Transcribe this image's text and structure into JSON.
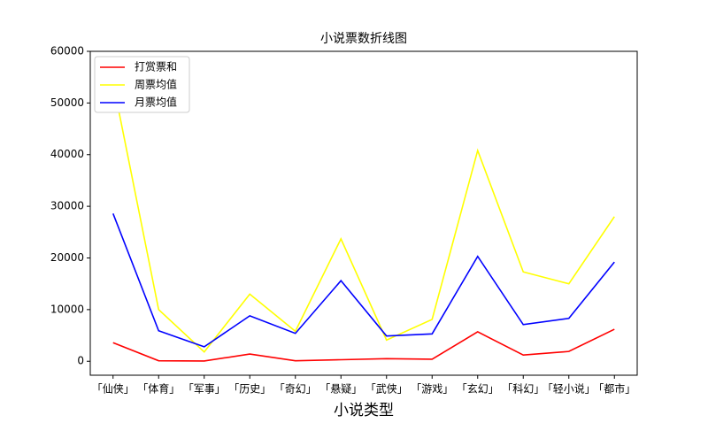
{
  "chart_data": {
    "type": "line",
    "title": "小说票数折线图",
    "x_label": "小说类型",
    "categories": [
      "「仙侠」",
      "「体育」",
      "「军事」",
      "「历史」",
      "「奇幻」",
      "「悬疑」",
      "「武侠」",
      "「游戏」",
      "「玄幻」",
      "「科幻」",
      "「轻小说」",
      "「都市」"
    ],
    "series": [
      {
        "name": "打赏票和",
        "color": "#ff0000",
        "values": [
          3600,
          100,
          50,
          1400,
          100,
          300,
          500,
          400,
          5700,
          1200,
          1900,
          6200
        ]
      },
      {
        "name": "周票均值",
        "color": "#ffff00",
        "values": [
          54000,
          10000,
          1800,
          13000,
          5800,
          23700,
          4100,
          8100,
          40800,
          17300,
          15000,
          28000
        ]
      },
      {
        "name": "月票均值",
        "color": "#0000ff",
        "values": [
          28600,
          5900,
          2800,
          8800,
          5400,
          15600,
          4900,
          5300,
          20300,
          7100,
          8300,
          19200
        ]
      }
    ],
    "ylim": [
      -2700,
      60000
    ],
    "yticks": [
      0,
      10000,
      20000,
      30000,
      40000,
      50000,
      60000
    ],
    "legend": "upper left"
  }
}
